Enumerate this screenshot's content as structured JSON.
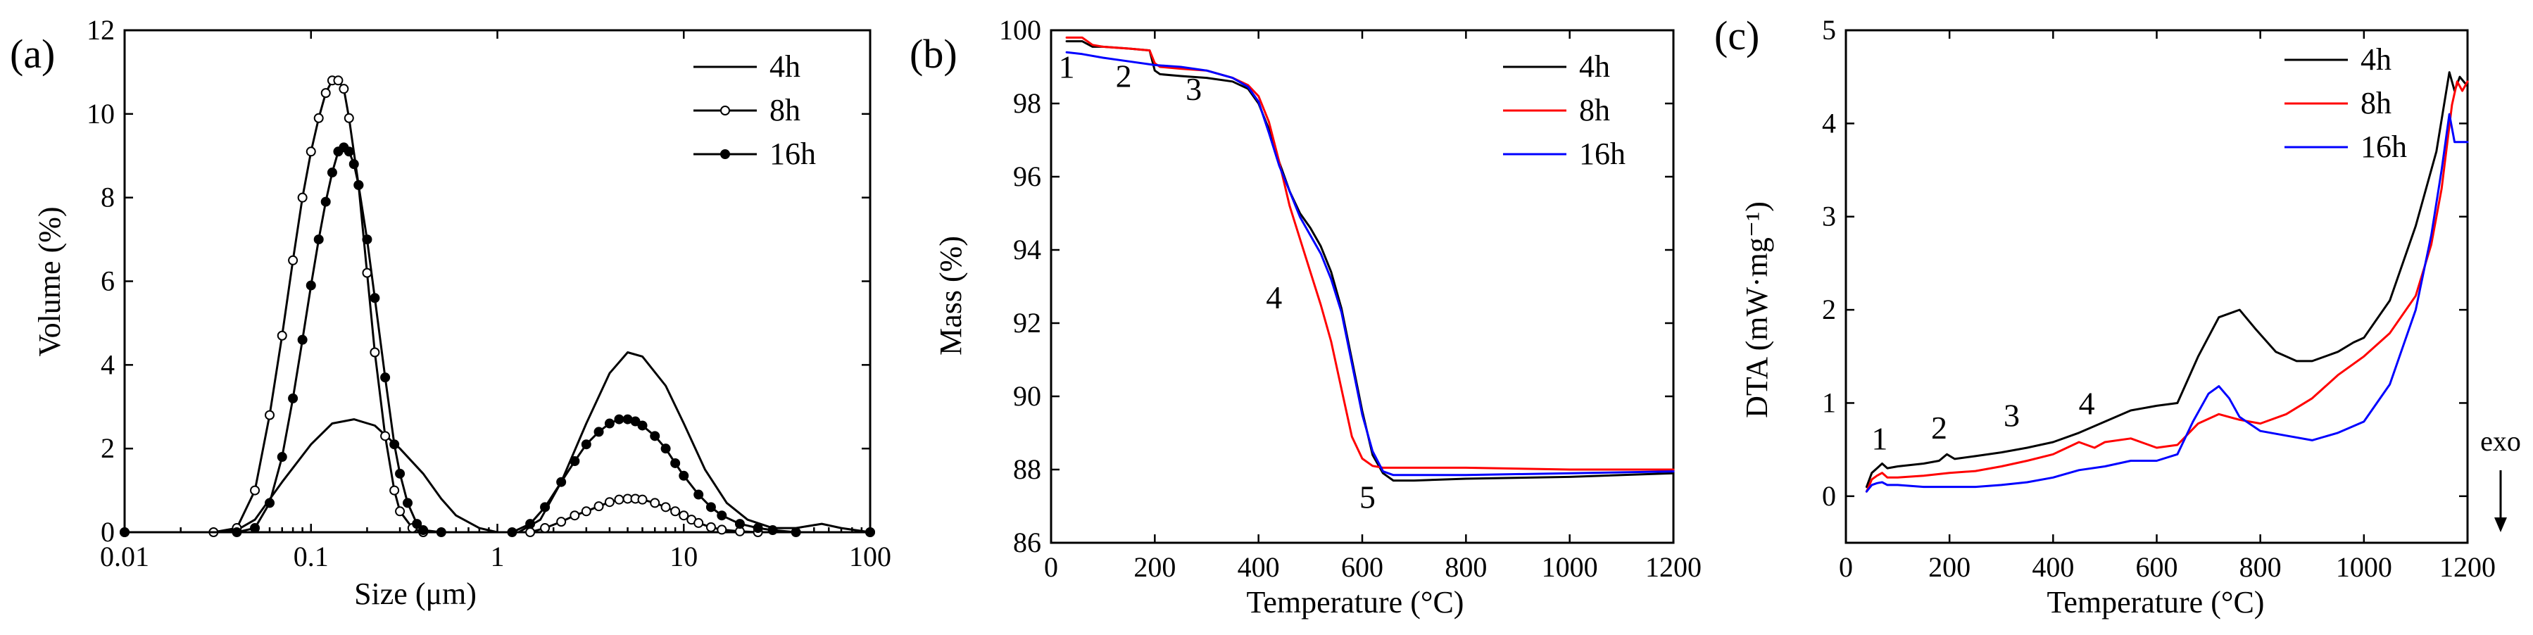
{
  "chart_data": [
    {
      "panel": "(a)",
      "type": "line",
      "xscale": "log",
      "xlabel": "Size (μm)",
      "ylabel": "Volume (%)",
      "xlim": [
        0.01,
        100
      ],
      "ylim": [
        0,
        12
      ],
      "xticks": [
        0.01,
        0.1,
        1,
        10,
        100
      ],
      "xtick_labels": [
        "0.01",
        "0.1",
        "1",
        "10",
        "100"
      ],
      "yticks": [
        0,
        2,
        4,
        6,
        8,
        10,
        12
      ],
      "ytick_labels": [
        "0",
        "2",
        "4",
        "6",
        "8",
        "10",
        "12"
      ],
      "legend_position": "top-right",
      "series": [
        {
          "name": "4h",
          "color": "#000000",
          "marker": "none",
          "x": [
            0.01,
            0.03,
            0.04,
            0.05,
            0.07,
            0.1,
            0.13,
            0.17,
            0.22,
            0.3,
            0.4,
            0.5,
            0.6,
            0.8,
            1.0,
            1.3,
            1.7,
            2.2,
            3,
            4,
            5,
            6,
            8,
            10,
            13,
            17,
            22,
            30,
            40,
            55,
            70,
            100
          ],
          "y": [
            0,
            0,
            0.05,
            0.3,
            1.2,
            2.1,
            2.6,
            2.7,
            2.55,
            2.0,
            1.4,
            0.8,
            0.4,
            0.1,
            0,
            0,
            0.3,
            1.2,
            2.6,
            3.8,
            4.3,
            4.2,
            3.5,
            2.6,
            1.5,
            0.7,
            0.3,
            0.1,
            0.1,
            0.2,
            0.1,
            0
          ]
        },
        {
          "name": "8h",
          "color": "#000000",
          "marker": "open-circle",
          "x": [
            0.01,
            0.03,
            0.04,
            0.05,
            0.06,
            0.07,
            0.08,
            0.09,
            0.1,
            0.11,
            0.12,
            0.13,
            0.14,
            0.15,
            0.16,
            0.18,
            0.2,
            0.22,
            0.25,
            0.28,
            0.3,
            0.35,
            0.4,
            0.5,
            1.5,
            1.8,
            2.2,
            2.6,
            3,
            3.5,
            4,
            4.5,
            5,
            5.5,
            6,
            7,
            8,
            9,
            10,
            11,
            12,
            14,
            16,
            20,
            25,
            100
          ],
          "y": [
            0,
            0,
            0.1,
            1.0,
            2.8,
            4.7,
            6.5,
            8.0,
            9.1,
            9.9,
            10.5,
            10.8,
            10.8,
            10.6,
            9.9,
            8.3,
            6.2,
            4.3,
            2.3,
            1.0,
            0.5,
            0.1,
            0,
            0,
            0,
            0.1,
            0.25,
            0.4,
            0.5,
            0.62,
            0.72,
            0.78,
            0.8,
            0.8,
            0.78,
            0.7,
            0.6,
            0.5,
            0.4,
            0.3,
            0.22,
            0.12,
            0.06,
            0.02,
            0,
            0
          ]
        },
        {
          "name": "16h",
          "color": "#000000",
          "marker": "filled-circle",
          "x": [
            0.01,
            0.04,
            0.05,
            0.06,
            0.07,
            0.08,
            0.09,
            0.1,
            0.11,
            0.12,
            0.13,
            0.14,
            0.15,
            0.16,
            0.17,
            0.18,
            0.2,
            0.22,
            0.25,
            0.28,
            0.3,
            0.33,
            0.37,
            0.4,
            0.5,
            1.2,
            1.5,
            1.8,
            2.2,
            2.6,
            3,
            3.5,
            4,
            4.5,
            5,
            5.5,
            6,
            7,
            8,
            9,
            10,
            12,
            14,
            16,
            20,
            25,
            30,
            40,
            100
          ],
          "y": [
            0,
            0,
            0.1,
            0.7,
            1.8,
            3.2,
            4.6,
            5.9,
            7.0,
            7.9,
            8.6,
            9.1,
            9.2,
            9.1,
            8.8,
            8.3,
            7.0,
            5.6,
            3.7,
            2.1,
            1.4,
            0.7,
            0.2,
            0.05,
            0,
            0,
            0.2,
            0.6,
            1.2,
            1.7,
            2.1,
            2.4,
            2.6,
            2.7,
            2.7,
            2.65,
            2.55,
            2.3,
            2.0,
            1.65,
            1.35,
            0.9,
            0.6,
            0.4,
            0.2,
            0.1,
            0.05,
            0,
            0
          ]
        }
      ]
    },
    {
      "panel": "(b)",
      "type": "line",
      "xlabel": "Temperature (°C)",
      "ylabel": "Mass (%)",
      "xlim": [
        0,
        1200
      ],
      "ylim": [
        86,
        100
      ],
      "xticks": [
        0,
        200,
        400,
        600,
        800,
        1000,
        1200
      ],
      "xtick_labels": [
        "0",
        "200",
        "400",
        "600",
        "800",
        "1000",
        "1200"
      ],
      "yticks": [
        86,
        88,
        90,
        92,
        94,
        96,
        98,
        100
      ],
      "ytick_labels": [
        "86",
        "88",
        "90",
        "92",
        "94",
        "96",
        "98",
        "100"
      ],
      "legend_position": "top-right",
      "annotations": [
        {
          "text": "1",
          "x": 30,
          "y": 98.7
        },
        {
          "text": "2",
          "x": 140,
          "y": 98.45
        },
        {
          "text": "3",
          "x": 275,
          "y": 98.1
        },
        {
          "text": "4",
          "x": 430,
          "y": 92.4
        },
        {
          "text": "5",
          "x": 610,
          "y": 86.95
        }
      ],
      "series": [
        {
          "name": "4h",
          "color": "#000000",
          "x": [
            30,
            60,
            80,
            100,
            150,
            190,
            200,
            210,
            250,
            300,
            350,
            380,
            400,
            420,
            440,
            460,
            480,
            500,
            520,
            540,
            560,
            580,
            600,
            620,
            640,
            660,
            680,
            700,
            800,
            1000,
            1200
          ],
          "y": [
            99.7,
            99.7,
            99.55,
            99.55,
            99.5,
            99.45,
            98.9,
            98.8,
            98.75,
            98.7,
            98.6,
            98.4,
            98.0,
            97.3,
            96.4,
            95.6,
            95.0,
            94.6,
            94.1,
            93.4,
            92.4,
            91.0,
            89.6,
            88.4,
            87.9,
            87.7,
            87.7,
            87.7,
            87.75,
            87.8,
            87.9
          ]
        },
        {
          "name": "8h",
          "color": "#ff0000",
          "x": [
            30,
            60,
            80,
            100,
            150,
            190,
            200,
            210,
            250,
            300,
            350,
            380,
            400,
            420,
            440,
            460,
            480,
            500,
            520,
            540,
            560,
            580,
            600,
            620,
            640,
            660,
            700,
            800,
            1000,
            1200
          ],
          "y": [
            99.8,
            99.8,
            99.6,
            99.55,
            99.5,
            99.45,
            99.1,
            99.0,
            98.95,
            98.9,
            98.7,
            98.5,
            98.2,
            97.5,
            96.4,
            95.2,
            94.3,
            93.4,
            92.5,
            91.5,
            90.2,
            88.9,
            88.3,
            88.1,
            88.05,
            88.05,
            88.05,
            88.05,
            88.0,
            88.0
          ]
        },
        {
          "name": "16h",
          "color": "#0000ff",
          "x": [
            30,
            60,
            100,
            150,
            200,
            250,
            300,
            350,
            380,
            400,
            420,
            440,
            460,
            480,
            500,
            520,
            540,
            560,
            580,
            600,
            620,
            640,
            660,
            700,
            800,
            1000,
            1200
          ],
          "y": [
            99.4,
            99.35,
            99.25,
            99.15,
            99.05,
            99.0,
            98.9,
            98.7,
            98.45,
            98.05,
            97.2,
            96.3,
            95.6,
            94.9,
            94.4,
            93.9,
            93.2,
            92.3,
            90.9,
            89.5,
            88.5,
            87.95,
            87.85,
            87.85,
            87.85,
            87.9,
            87.95
          ]
        }
      ]
    },
    {
      "panel": "(c)",
      "type": "line",
      "xlabel": "Temperature (°C)",
      "ylabel": "DTA (mW·mg⁻¹)",
      "xlim": [
        0,
        1200
      ],
      "ylim": [
        -0.5,
        5
      ],
      "xticks": [
        0,
        200,
        400,
        600,
        800,
        1000,
        1200
      ],
      "xtick_labels": [
        "0",
        "200",
        "400",
        "600",
        "800",
        "1000",
        "1200"
      ],
      "yticks": [
        0,
        1,
        2,
        3,
        4,
        5
      ],
      "ytick_labels": [
        "0",
        "1",
        "2",
        "3",
        "4",
        "5"
      ],
      "legend_position": "top-right",
      "side_label": "exo",
      "annotations": [
        {
          "text": "1",
          "x": 65,
          "y": 0.5
        },
        {
          "text": "2",
          "x": 180,
          "y": 0.62
        },
        {
          "text": "3",
          "x": 320,
          "y": 0.75
        },
        {
          "text": "4",
          "x": 465,
          "y": 0.88
        }
      ],
      "series": [
        {
          "name": "4h",
          "color": "#000000",
          "x": [
            40,
            50,
            60,
            70,
            80,
            100,
            150,
            180,
            195,
            210,
            250,
            300,
            350,
            400,
            450,
            500,
            550,
            600,
            640,
            680,
            720,
            760,
            790,
            830,
            870,
            900,
            950,
            980,
            1000,
            1050,
            1100,
            1140,
            1165,
            1175,
            1185,
            1200
          ],
          "y": [
            0.1,
            0.25,
            0.3,
            0.35,
            0.3,
            0.32,
            0.35,
            0.38,
            0.45,
            0.4,
            0.43,
            0.47,
            0.52,
            0.58,
            0.68,
            0.8,
            0.92,
            0.97,
            1.0,
            1.5,
            1.92,
            2.0,
            1.8,
            1.55,
            1.45,
            1.45,
            1.55,
            1.65,
            1.7,
            2.1,
            2.9,
            3.7,
            4.55,
            4.35,
            4.5,
            4.4
          ]
        },
        {
          "name": "8h",
          "color": "#ff0000",
          "x": [
            40,
            50,
            60,
            70,
            80,
            100,
            150,
            200,
            250,
            300,
            350,
            400,
            450,
            480,
            500,
            550,
            600,
            640,
            680,
            720,
            760,
            800,
            850,
            900,
            950,
            1000,
            1050,
            1100,
            1130,
            1150,
            1170,
            1180,
            1190,
            1200
          ],
          "y": [
            0.05,
            0.18,
            0.22,
            0.25,
            0.2,
            0.2,
            0.22,
            0.25,
            0.27,
            0.32,
            0.38,
            0.45,
            0.58,
            0.52,
            0.58,
            0.62,
            0.52,
            0.55,
            0.78,
            0.88,
            0.82,
            0.78,
            0.88,
            1.05,
            1.3,
            1.5,
            1.75,
            2.15,
            2.7,
            3.3,
            4.2,
            4.45,
            4.35,
            4.45
          ]
        },
        {
          "name": "16h",
          "color": "#0000ff",
          "x": [
            40,
            50,
            60,
            70,
            80,
            100,
            150,
            200,
            250,
            300,
            350,
            400,
            450,
            500,
            550,
            600,
            640,
            670,
            700,
            720,
            740,
            760,
            800,
            850,
            900,
            950,
            1000,
            1050,
            1100,
            1130,
            1150,
            1165,
            1175,
            1185,
            1200
          ],
          "y": [
            0.05,
            0.12,
            0.14,
            0.15,
            0.12,
            0.12,
            0.1,
            0.1,
            0.1,
            0.12,
            0.15,
            0.2,
            0.28,
            0.32,
            0.38,
            0.38,
            0.45,
            0.8,
            1.1,
            1.18,
            1.05,
            0.85,
            0.7,
            0.65,
            0.6,
            0.68,
            0.8,
            1.2,
            2.0,
            2.8,
            3.5,
            4.1,
            3.8,
            3.8,
            3.8
          ]
        }
      ]
    }
  ]
}
